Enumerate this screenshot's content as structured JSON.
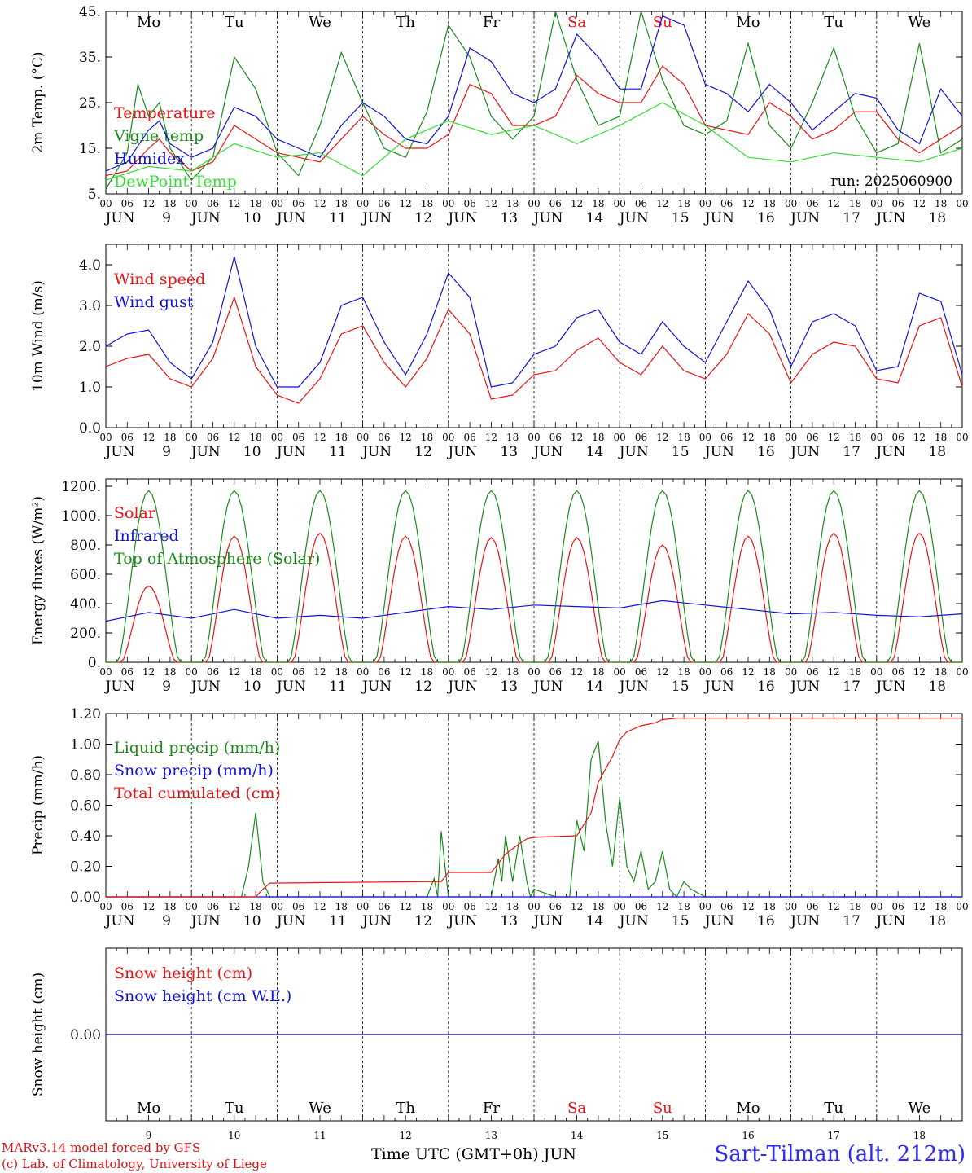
{
  "footer": {
    "model": "MARv3.14 model forced by GFS",
    "lab": "(c) Lab. of Climatology, University of Liege",
    "time_axis": "Time UTC (GMT+0h) JUN",
    "station": "Sart-Tilman (alt. 212m)"
  },
  "colors": {
    "red": "#ee1111",
    "green": "#1a8a1a",
    "blue": "#1111dd",
    "lightgreen": "#33dd33",
    "grid": "#000000"
  },
  "days": [
    {
      "dow": "Mo",
      "date": "9",
      "weekend": false
    },
    {
      "dow": "Tu",
      "date": "10",
      "weekend": false
    },
    {
      "dow": "We",
      "date": "11",
      "weekend": false
    },
    {
      "dow": "Th",
      "date": "12",
      "weekend": false
    },
    {
      "dow": "Fr",
      "date": "13",
      "weekend": false
    },
    {
      "dow": "Sa",
      "date": "14",
      "weekend": true
    },
    {
      "dow": "Su",
      "date": "15",
      "weekend": true
    },
    {
      "dow": "Mo",
      "date": "16",
      "weekend": false
    },
    {
      "dow": "Tu",
      "date": "17",
      "weekend": false
    },
    {
      "dow": "We",
      "date": "18",
      "weekend": false
    }
  ],
  "hour_ticks": [
    "00",
    "06",
    "12",
    "18"
  ],
  "end_tick": "00",
  "month_label": "JUN",
  "chart_data": [
    {
      "type": "line",
      "ylabel": "2m Temp. (°C)",
      "ylim": [
        5,
        45
      ],
      "yticks": [
        "5.",
        "15.",
        "25.",
        "35.",
        "45."
      ],
      "show_dow": true,
      "run_label": "run: 2025060900",
      "x_unit": "hours since 2025-06-09 00 UTC",
      "series": [
        {
          "name": "Temperature",
          "color": "red",
          "x": [
            0,
            6,
            12,
            15,
            18,
            24,
            30,
            36,
            42,
            48,
            54,
            60,
            66,
            72,
            78,
            84,
            90,
            96,
            102,
            108,
            114,
            120,
            126,
            132,
            138,
            144,
            150,
            156,
            162,
            168,
            174,
            180,
            186,
            192,
            198,
            204,
            210,
            216,
            222,
            228,
            234,
            240
          ],
          "y": [
            9,
            10,
            15,
            17,
            14,
            10,
            12,
            20,
            17,
            14,
            13,
            12,
            17,
            22,
            18,
            15,
            15,
            18,
            29,
            27,
            20,
            20,
            22,
            31,
            27,
            25,
            25,
            33,
            29,
            20,
            19,
            18,
            25,
            22,
            17,
            19,
            23,
            23,
            17,
            14,
            17,
            20
          ]
        },
        {
          "name": "Vigne temp",
          "color": "green",
          "x": [
            0,
            6,
            9,
            12,
            15,
            18,
            24,
            30,
            36,
            42,
            48,
            54,
            60,
            66,
            72,
            78,
            84,
            90,
            96,
            102,
            108,
            114,
            120,
            126,
            132,
            138,
            144,
            150,
            156,
            162,
            168,
            174,
            180,
            186,
            192,
            198,
            204,
            210,
            216,
            222,
            228,
            234,
            240
          ],
          "y": [
            6,
            14,
            29,
            22,
            25,
            15,
            8,
            13,
            35,
            28,
            14,
            9,
            20,
            36,
            25,
            15,
            13,
            23,
            42,
            35,
            22,
            17,
            22,
            45,
            30,
            20,
            22,
            45,
            30,
            20,
            18,
            21,
            38,
            20,
            15,
            25,
            37,
            22,
            14,
            16,
            38,
            14,
            17
          ]
        },
        {
          "name": "Humidex",
          "color": "blue",
          "x": [
            0,
            6,
            12,
            15,
            18,
            24,
            30,
            36,
            42,
            48,
            54,
            60,
            66,
            72,
            78,
            84,
            90,
            96,
            102,
            108,
            114,
            120,
            126,
            132,
            138,
            144,
            150,
            156,
            162,
            168,
            174,
            180,
            186,
            192,
            198,
            204,
            210,
            216,
            222,
            228,
            234,
            240
          ],
          "y": [
            10,
            12,
            19,
            21,
            16,
            13,
            15,
            24,
            22,
            17,
            15,
            13,
            20,
            25,
            22,
            17,
            16,
            22,
            37,
            34,
            27,
            25,
            28,
            40,
            35,
            28,
            28,
            44,
            42,
            29,
            27,
            23,
            29,
            25,
            19,
            23,
            27,
            26,
            19,
            16,
            28,
            22
          ]
        },
        {
          "name": "DewPoint Temp",
          "color": "lightgreen",
          "x": [
            0,
            12,
            24,
            36,
            48,
            60,
            72,
            84,
            96,
            108,
            120,
            132,
            144,
            156,
            168,
            180,
            192,
            204,
            216,
            228,
            240
          ],
          "y": [
            8,
            11,
            10,
            16,
            13,
            14,
            9,
            17,
            21,
            18,
            20,
            16,
            20,
            25,
            20,
            13,
            12,
            14,
            13,
            12,
            15
          ]
        }
      ]
    },
    {
      "type": "line",
      "ylabel": "10m Wind (m/s)",
      "ylim": [
        0,
        4.5
      ],
      "yticks": [
        "0.0",
        "1.0",
        "2.0",
        "3.0",
        "4.0"
      ],
      "show_dow": false,
      "x_unit": "hours since 2025-06-09 00 UTC",
      "series": [
        {
          "name": "Wind speed",
          "color": "red",
          "x": [
            0,
            6,
            12,
            18,
            24,
            30,
            36,
            42,
            48,
            54,
            60,
            66,
            72,
            78,
            84,
            90,
            96,
            102,
            108,
            114,
            120,
            126,
            132,
            138,
            144,
            150,
            156,
            162,
            168,
            174,
            180,
            186,
            192,
            198,
            204,
            210,
            216,
            222,
            228,
            234,
            240
          ],
          "y": [
            1.5,
            1.7,
            1.8,
            1.2,
            1.0,
            1.7,
            3.2,
            1.5,
            0.8,
            0.6,
            1.2,
            2.3,
            2.5,
            1.6,
            1.0,
            1.7,
            2.9,
            2.3,
            0.7,
            0.8,
            1.3,
            1.4,
            1.9,
            2.2,
            1.6,
            1.3,
            2.0,
            1.4,
            1.2,
            1.8,
            2.8,
            2.3,
            1.1,
            1.8,
            2.1,
            2.0,
            1.2,
            1.1,
            2.5,
            2.7,
            1.0
          ]
        },
        {
          "name": "Wind gust",
          "color": "blue",
          "x": [
            0,
            6,
            12,
            18,
            24,
            30,
            36,
            42,
            48,
            54,
            60,
            66,
            72,
            78,
            84,
            90,
            96,
            102,
            108,
            114,
            120,
            126,
            132,
            138,
            144,
            150,
            156,
            162,
            168,
            174,
            180,
            186,
            192,
            198,
            204,
            210,
            216,
            222,
            228,
            234,
            240
          ],
          "y": [
            2.0,
            2.3,
            2.4,
            1.6,
            1.2,
            2.1,
            4.2,
            2.0,
            1.0,
            1.0,
            1.6,
            3.0,
            3.2,
            2.1,
            1.3,
            2.3,
            3.8,
            3.2,
            1.0,
            1.1,
            1.8,
            2.0,
            2.7,
            2.9,
            2.1,
            1.8,
            2.6,
            2.0,
            1.6,
            2.6,
            3.6,
            2.9,
            1.5,
            2.6,
            2.8,
            2.5,
            1.4,
            1.5,
            3.3,
            3.1,
            1.3
          ]
        }
      ]
    },
    {
      "type": "line",
      "ylabel": "Energy fluxes (W/m²)",
      "ylim": [
        0,
        1250
      ],
      "yticks": [
        "0.",
        "200.",
        "400.",
        "600.",
        "800.",
        "1000.",
        "1200."
      ],
      "show_dow": false,
      "x_unit": "hours since 2025-06-09 00 UTC",
      "series": [
        {
          "name": "Solar",
          "color": "red",
          "daily_peaks": [
            520,
            860,
            880,
            860,
            850,
            850,
            800,
            860,
            880,
            880
          ]
        },
        {
          "name": "Infrared",
          "color": "blue",
          "x": [
            0,
            12,
            24,
            36,
            48,
            60,
            72,
            84,
            96,
            108,
            120,
            132,
            144,
            156,
            168,
            180,
            192,
            204,
            216,
            228,
            240
          ],
          "y": [
            280,
            340,
            300,
            360,
            300,
            320,
            300,
            340,
            380,
            360,
            390,
            380,
            370,
            420,
            390,
            360,
            330,
            340,
            320,
            310,
            330
          ]
        },
        {
          "name": "Top of Atmosphere (Solar)",
          "color": "green",
          "daily_peak": 1170
        }
      ]
    },
    {
      "type": "line",
      "ylabel": "Precip (mm/h)",
      "ylim": [
        0,
        1.2
      ],
      "yticks": [
        "0.00",
        "0.20",
        "0.40",
        "0.60",
        "0.80",
        "1.00",
        "1.20"
      ],
      "show_dow": false,
      "x_unit": "hours since 2025-06-09 00 UTC",
      "series": [
        {
          "name": "Liquid precip (mm/h)",
          "color": "green",
          "x": [
            0,
            38,
            40,
            42,
            44,
            46,
            90,
            92,
            93,
            94,
            96,
            97,
            98,
            99,
            100,
            108,
            110,
            111,
            112,
            114,
            116,
            118,
            119,
            120,
            126,
            130,
            132,
            134,
            136,
            138,
            140,
            142,
            144,
            146,
            148,
            150,
            152,
            154,
            156,
            158,
            160,
            162,
            164,
            168,
            172,
            240
          ],
          "y": [
            0,
            0,
            0.2,
            0.55,
            0.1,
            0,
            0,
            0.12,
            0,
            0.43,
            0,
            0,
            0,
            0,
            0,
            0,
            0.25,
            0.1,
            0.4,
            0.1,
            0.4,
            0.1,
            0,
            0.05,
            0,
            0,
            0.5,
            0.3,
            0.9,
            1.02,
            0.5,
            0.2,
            0.65,
            0.2,
            0.1,
            0.3,
            0.05,
            0.1,
            0.3,
            0.05,
            0,
            0.1,
            0.05,
            0,
            0,
            0
          ]
        },
        {
          "name": "Snow precip (mm/h)",
          "color": "blue",
          "x": [
            0,
            240
          ],
          "y": [
            0,
            0
          ]
        },
        {
          "name": "Total cumulated (cm)",
          "color": "red",
          "x": [
            0,
            42,
            44,
            46,
            90,
            94,
            96,
            108,
            112,
            116,
            118,
            120,
            132,
            136,
            138,
            142,
            144,
            146,
            150,
            154,
            156,
            160,
            240
          ],
          "y": [
            0,
            0,
            0.05,
            0.09,
            0.1,
            0.1,
            0.16,
            0.16,
            0.28,
            0.35,
            0.38,
            0.39,
            0.4,
            0.55,
            0.75,
            0.92,
            1.03,
            1.08,
            1.12,
            1.14,
            1.16,
            1.17,
            1.17
          ]
        }
      ]
    },
    {
      "type": "line",
      "ylabel": "Snow height (cm)",
      "ylim": [
        -1,
        1
      ],
      "yticks": [
        "0.00"
      ],
      "show_dow": true,
      "x_unit": "hours since 2025-06-09 00 UTC",
      "series": [
        {
          "name": "Snow height (cm)",
          "color": "red",
          "x": [
            0,
            240
          ],
          "y": [
            0,
            0
          ]
        },
        {
          "name": "Snow height (cm W.E.)",
          "color": "blue",
          "x": [
            0,
            240
          ],
          "y": [
            0,
            0
          ]
        }
      ]
    }
  ]
}
